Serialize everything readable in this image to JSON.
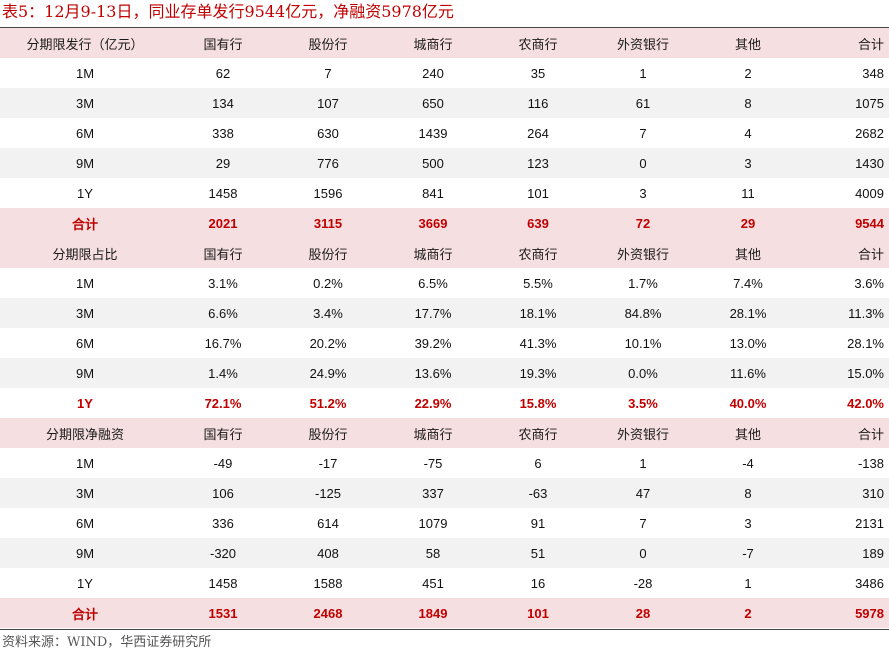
{
  "title": "表5：12月9-13日，同业存单发行9544亿元，净融资5978亿元",
  "source": "资料来源：WIND，华西证券研究所",
  "colors": {
    "accent_red": "#c00000",
    "header_pink": "#f6dfe0",
    "row_gray": "#f2f2f2"
  },
  "sections": [
    {
      "header": [
        "分期限发行（亿元）",
        "国有行",
        "股份行",
        "城商行",
        "农商行",
        "外资银行",
        "其他",
        "合计"
      ],
      "rows": [
        [
          "1M",
          "62",
          "7",
          "240",
          "35",
          "1",
          "2",
          "348"
        ],
        [
          "3M",
          "134",
          "107",
          "650",
          "116",
          "61",
          "8",
          "1075"
        ],
        [
          "6M",
          "338",
          "630",
          "1439",
          "264",
          "7",
          "4",
          "2682"
        ],
        [
          "9M",
          "29",
          "776",
          "500",
          "123",
          "0",
          "3",
          "1430"
        ],
        [
          "1Y",
          "1458",
          "1596",
          "841",
          "101",
          "3",
          "11",
          "4009"
        ],
        [
          "合计",
          "2021",
          "3115",
          "3669",
          "639",
          "72",
          "29",
          "9544"
        ]
      ]
    },
    {
      "header": [
        "分期限占比",
        "国有行",
        "股份行",
        "城商行",
        "农商行",
        "外资银行",
        "其他",
        "合计"
      ],
      "rows": [
        [
          "1M",
          "3.1%",
          "0.2%",
          "6.5%",
          "5.5%",
          "1.7%",
          "7.4%",
          "3.6%"
        ],
        [
          "3M",
          "6.6%",
          "3.4%",
          "17.7%",
          "18.1%",
          "84.8%",
          "28.1%",
          "11.3%"
        ],
        [
          "6M",
          "16.7%",
          "20.2%",
          "39.2%",
          "41.3%",
          "10.1%",
          "13.0%",
          "28.1%"
        ],
        [
          "9M",
          "1.4%",
          "24.9%",
          "13.6%",
          "19.3%",
          "0.0%",
          "11.6%",
          "15.0%"
        ],
        [
          "1Y",
          "72.1%",
          "51.2%",
          "22.9%",
          "15.8%",
          "3.5%",
          "40.0%",
          "42.0%"
        ]
      ]
    },
    {
      "header": [
        "分期限净融资",
        "国有行",
        "股份行",
        "城商行",
        "农商行",
        "外资银行",
        "其他",
        "合计"
      ],
      "rows": [
        [
          "1M",
          "-49",
          "-17",
          "-75",
          "6",
          "1",
          "-4",
          "-138"
        ],
        [
          "3M",
          "106",
          "-125",
          "337",
          "-63",
          "47",
          "8",
          "310"
        ],
        [
          "6M",
          "336",
          "614",
          "1079",
          "91",
          "7",
          "3",
          "2131"
        ],
        [
          "9M",
          "-320",
          "408",
          "58",
          "51",
          "0",
          "-7",
          "189"
        ],
        [
          "1Y",
          "1458",
          "1588",
          "451",
          "16",
          "-28",
          "1",
          "3486"
        ],
        [
          "合计",
          "1531",
          "2468",
          "1849",
          "101",
          "28",
          "2",
          "5978"
        ]
      ]
    }
  ]
}
